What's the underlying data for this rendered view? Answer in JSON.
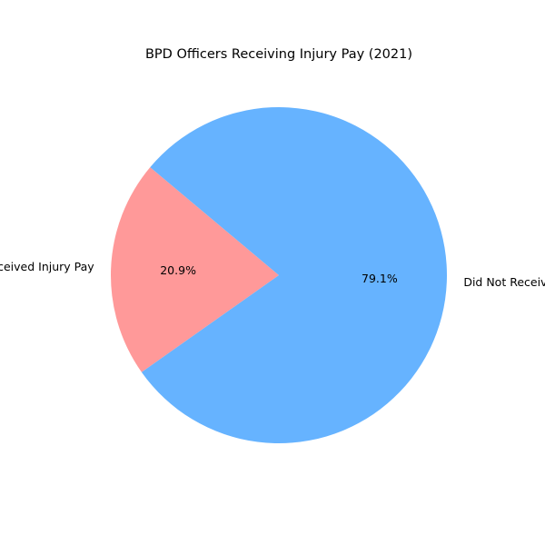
{
  "chart_data": {
    "type": "pie",
    "title": "BPD Officers Receiving Injury Pay (2021)",
    "labels": [
      "Received Injury Pay",
      "Did Not Receive Injury Pay"
    ],
    "values": [
      20.9,
      79.1
    ],
    "value_labels": [
      "20.9%",
      "79.1%"
    ],
    "colors": [
      "#ff9999",
      "#66b3ff"
    ],
    "start_angle_deg": 140,
    "direction": "counterclockwise",
    "legend": "none"
  }
}
